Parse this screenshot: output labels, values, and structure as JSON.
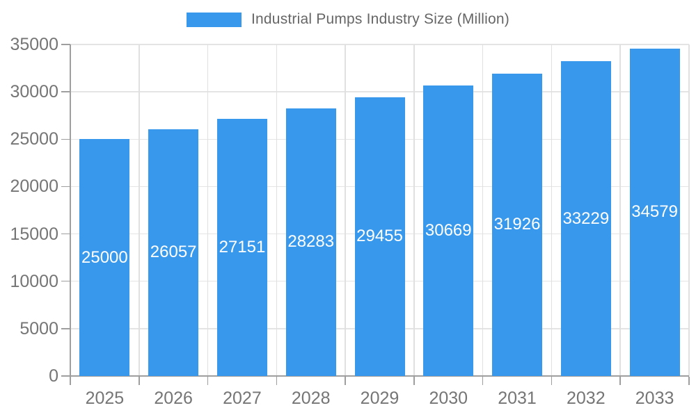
{
  "legend": {
    "label": "Industrial Pumps Industry Size (Million)"
  },
  "chart_data": {
    "type": "bar",
    "title": "Industrial Pumps Industry Size (Million)",
    "categories": [
      "2025",
      "2026",
      "2027",
      "2028",
      "2029",
      "2030",
      "2031",
      "2032",
      "2033"
    ],
    "values": [
      25000,
      26057,
      27151,
      28283,
      29455,
      30669,
      31926,
      33229,
      34579
    ],
    "xlabel": "",
    "ylabel": "",
    "ylim": [
      0,
      35000
    ],
    "yticks": [
      0,
      5000,
      10000,
      15000,
      20000,
      25000,
      30000,
      35000
    ],
    "grid": true,
    "legend_position": "top-center",
    "bar_labels_inside": true
  },
  "colors": {
    "bar": "#3898ec",
    "bar_label": "#ffffff",
    "axis_text": "#757575",
    "title_text": "#666666",
    "grid_line": "#e4e4e4",
    "axis_line": "#9e9e9e",
    "background": "#ffffff"
  }
}
